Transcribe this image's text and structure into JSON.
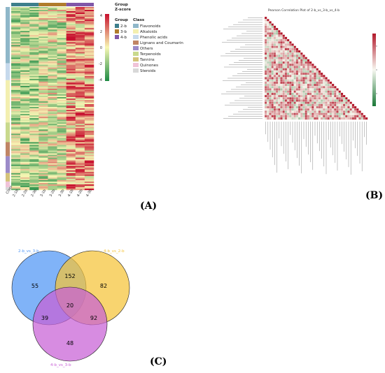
{
  "panel_a": {
    "label": "(A)",
    "zscore_title_1": "Group",
    "zscore_title_2": "Z-score",
    "zscore_ticks": [
      "4",
      "2",
      "0",
      "-2",
      "-4"
    ],
    "group_legend_title": "Group",
    "class_legend_title": "Class",
    "groups": [
      {
        "name": "2-b",
        "color": "#3d7f8c"
      },
      {
        "name": "3-b",
        "color": "#b07c2c"
      },
      {
        "name": "4-b",
        "color": "#8057a8"
      }
    ],
    "classes": [
      {
        "name": "Flavonoids",
        "color": "#8fb7c9"
      },
      {
        "name": "Alkaloids",
        "color": "#f3efb0"
      },
      {
        "name": "Phenolic acids",
        "color": "#c6d9ec"
      },
      {
        "name": "Lignans and Coumarins",
        "color": "#c08565"
      },
      {
        "name": "Others",
        "color": "#9c8bc9"
      },
      {
        "name": "Terpenoids",
        "color": "#c9d98d"
      },
      {
        "name": "Tannins",
        "color": "#d4c37a"
      },
      {
        "name": "Quinones",
        "color": "#f0c3d8"
      },
      {
        "name": "Steroids",
        "color": "#d8d8d8"
      }
    ],
    "column_labels": [
      "2-1b",
      "2-2b",
      "2-3b",
      "3-1b",
      "3-2b",
      "3-3b",
      "4-1b",
      "4-2b",
      "4-3b"
    ],
    "class_column_label": "Class"
  },
  "panel_b": {
    "label": "(B)",
    "title": "Pearson Correlation Plot of 2-b_vs_3-b_vs_4-b"
  },
  "panel_c": {
    "label": "(C)",
    "sets": [
      {
        "name": "2-b_vs_3-b",
        "color": "#4f96f5"
      },
      {
        "name": "4-b_vs_2-b",
        "color": "#f5c338"
      },
      {
        "name": "4-b_vs_3-b",
        "color": "#c75fd6"
      }
    ],
    "regions": {
      "only_a": "55",
      "a_b": "152",
      "only_b": "82",
      "all": "20",
      "a_c": "39",
      "b_c": "92",
      "only_c": "48"
    }
  }
}
